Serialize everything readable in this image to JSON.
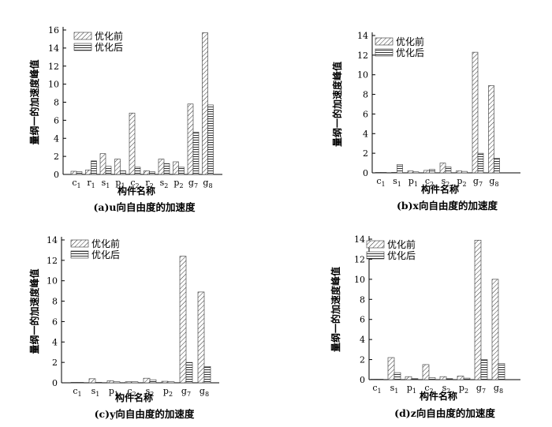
{
  "legend_labels": [
    "优化前",
    "优化后"
  ],
  "chart_data": [
    {
      "type": "bar",
      "caption": "(a)u向自由度的加速度",
      "xlabel": "构件名称",
      "ylabel": "量纲一的加速度峰值",
      "ylim": [
        0,
        16
      ],
      "yticks": [
        0,
        2,
        4,
        6,
        8,
        10,
        12,
        14,
        16
      ],
      "categories": [
        {
          "base": "c",
          "sub": "1"
        },
        {
          "base": "r",
          "sub": "1"
        },
        {
          "base": "s",
          "sub": "1"
        },
        {
          "base": "p",
          "sub": "1"
        },
        {
          "base": "c",
          "sub": "2"
        },
        {
          "base": "r",
          "sub": "2"
        },
        {
          "base": "s",
          "sub": "2"
        },
        {
          "base": "p",
          "sub": "2"
        },
        {
          "base": "g",
          "sub": "7"
        },
        {
          "base": "g",
          "sub": "8"
        }
      ],
      "series": [
        {
          "name": "优化前",
          "values": [
            0.35,
            0.5,
            2.3,
            1.7,
            6.8,
            0.4,
            1.7,
            1.4,
            7.8,
            15.7
          ]
        },
        {
          "name": "优化后",
          "values": [
            0.3,
            1.5,
            0.9,
            0.4,
            0.8,
            0.3,
            1.2,
            0.8,
            4.7,
            7.7
          ]
        }
      ],
      "legend_position": "top-left"
    },
    {
      "type": "bar",
      "caption": "(b)x向自由度的加速度",
      "xlabel": "构件名称",
      "ylabel": "量纲一的加速度峰值",
      "ylim": [
        0,
        14
      ],
      "yticks": [
        0,
        2,
        4,
        6,
        8,
        10,
        12,
        14
      ],
      "categories": [
        {
          "base": "c",
          "sub": "1"
        },
        {
          "base": "s",
          "sub": "1"
        },
        {
          "base": "p",
          "sub": "1"
        },
        {
          "base": "c",
          "sub": "2"
        },
        {
          "base": "s",
          "sub": "2"
        },
        {
          "base": "p",
          "sub": "2"
        },
        {
          "base": "g",
          "sub": "7"
        },
        {
          "base": "g",
          "sub": "8"
        }
      ],
      "series": [
        {
          "name": "优化前",
          "values": [
            0.02,
            0.02,
            0.2,
            0.25,
            1.0,
            0.2,
            12.3,
            8.9
          ]
        },
        {
          "name": "优化后",
          "values": [
            0.02,
            0.85,
            0.1,
            0.35,
            0.6,
            0.15,
            2.0,
            1.5
          ]
        }
      ],
      "legend_position": "top-left"
    },
    {
      "type": "bar",
      "caption": "(c)y向自由度的加速度",
      "xlabel": "构件名称",
      "ylabel": "量纲一的加速度峰值",
      "ylim": [
        0,
        14
      ],
      "yticks": [
        0,
        2,
        4,
        6,
        8,
        10,
        12,
        14
      ],
      "categories": [
        {
          "base": "c",
          "sub": "1"
        },
        {
          "base": "s",
          "sub": "1"
        },
        {
          "base": "p",
          "sub": "1"
        },
        {
          "base": "c",
          "sub": "2"
        },
        {
          "base": "s",
          "sub": "2"
        },
        {
          "base": "p",
          "sub": "2"
        },
        {
          "base": "g",
          "sub": "7"
        },
        {
          "base": "g",
          "sub": "8"
        }
      ],
      "series": [
        {
          "name": "优化前",
          "values": [
            0.02,
            0.4,
            0.2,
            0.1,
            0.45,
            0.15,
            12.4,
            8.9
          ]
        },
        {
          "name": "优化后",
          "values": [
            0.02,
            0.02,
            0.1,
            0.1,
            0.3,
            0.1,
            2.0,
            1.6
          ]
        }
      ],
      "legend_position": "top-left"
    },
    {
      "type": "bar",
      "caption": "(d)z向自由度的加速度",
      "xlabel": "构件名称",
      "ylabel": "量纲一的加速度峰值",
      "ylim": [
        0,
        14
      ],
      "yticks": [
        0,
        2,
        4,
        6,
        8,
        10,
        12,
        14
      ],
      "categories": [
        {
          "base": "c",
          "sub": "1"
        },
        {
          "base": "s",
          "sub": "1"
        },
        {
          "base": "p",
          "sub": "1"
        },
        {
          "base": "c",
          "sub": "2"
        },
        {
          "base": "s",
          "sub": "2"
        },
        {
          "base": "p",
          "sub": "2"
        },
        {
          "base": "g",
          "sub": "7"
        },
        {
          "base": "g",
          "sub": "8"
        }
      ],
      "series": [
        {
          "name": "优化前",
          "values": [
            0.05,
            2.2,
            0.3,
            1.5,
            0.3,
            0.35,
            13.9,
            10.0
          ]
        },
        {
          "name": "优化后",
          "values": [
            0.02,
            0.7,
            0.1,
            0.2,
            0.1,
            0.15,
            2.0,
            1.6
          ]
        }
      ],
      "legend_position": "top-left"
    }
  ]
}
